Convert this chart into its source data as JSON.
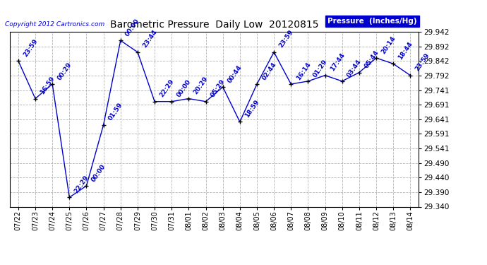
{
  "title": "Barometric Pressure  Daily Low  20120815",
  "ylabel_legend": "Pressure  (Inches/Hg)",
  "copyright": "Copyright 2012 Cartronics.com",
  "background_color": "#ffffff",
  "line_color": "#0000cc",
  "marker_color": "#000000",
  "text_color": "#0000cc",
  "legend_bg": "#0000cc",
  "legend_fg": "#ffffff",
  "ylim_min": 29.34,
  "ylim_max": 29.942,
  "yticks": [
    29.34,
    29.39,
    29.44,
    29.49,
    29.541,
    29.591,
    29.641,
    29.691,
    29.741,
    29.792,
    29.842,
    29.892,
    29.942
  ],
  "dates": [
    "07/22",
    "07/23",
    "07/24",
    "07/25",
    "07/26",
    "07/27",
    "07/28",
    "07/29",
    "07/30",
    "07/31",
    "08/01",
    "08/02",
    "08/03",
    "08/04",
    "08/05",
    "08/06",
    "08/07",
    "08/08",
    "08/09",
    "08/10",
    "08/11",
    "08/12",
    "08/13",
    "08/14"
  ],
  "values": [
    29.842,
    29.712,
    29.762,
    29.372,
    29.412,
    29.622,
    29.912,
    29.872,
    29.702,
    29.702,
    29.712,
    29.702,
    29.752,
    29.632,
    29.762,
    29.872,
    29.762,
    29.772,
    29.792,
    29.772,
    29.802,
    29.852,
    29.832,
    29.792
  ],
  "point_labels": [
    "23:59",
    "16:59",
    "00:29",
    "22:29",
    "00:00",
    "01:59",
    "00:00",
    "23:44",
    "22:29",
    "00:00",
    "20:29",
    "05:29",
    "00:44",
    "18:59",
    "02:44",
    "23:59",
    "16:14",
    "01:29",
    "17:44",
    "03:44",
    "05:44",
    "20:14",
    "18:44",
    "23:59"
  ],
  "label_offsets_x": [
    4,
    4,
    4,
    4,
    4,
    4,
    4,
    4,
    4,
    4,
    4,
    4,
    4,
    4,
    4,
    4,
    4,
    4,
    4,
    4,
    4,
    4,
    4,
    4
  ],
  "label_offsets_y": [
    3,
    3,
    3,
    3,
    3,
    3,
    3,
    3,
    3,
    3,
    3,
    3,
    3,
    3,
    3,
    3,
    3,
    3,
    3,
    3,
    3,
    3,
    3,
    3
  ]
}
